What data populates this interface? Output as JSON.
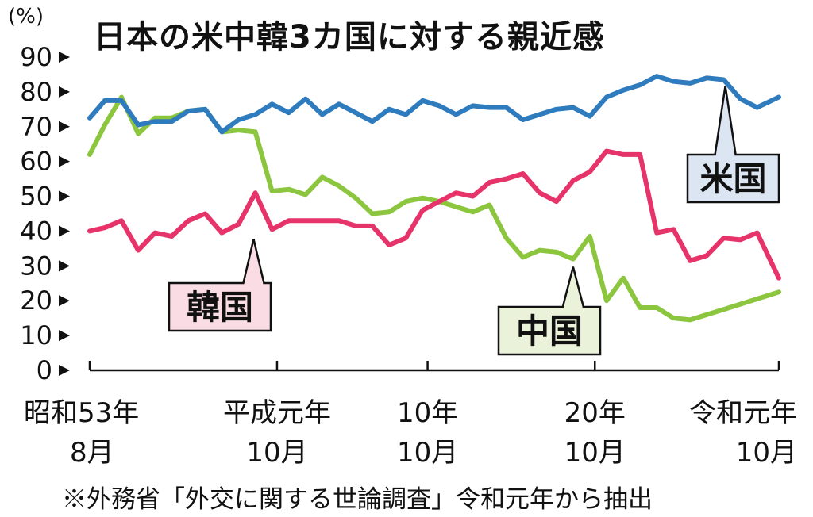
{
  "unit": "(%)",
  "title": "日本の米中韓3カ国に対する親近感",
  "source": "※外務省「外交に関する世論調査」令和元年から抽出",
  "chart_data": {
    "type": "line",
    "title": "日本の米中韓3カ国に対する親近感",
    "ylabel": "(%)",
    "xlabel": "",
    "ylim": [
      0,
      90
    ],
    "yticks": [
      "0",
      "10",
      "20",
      "30",
      "40",
      "50",
      "60",
      "70",
      "80",
      "90"
    ],
    "x_range": [
      1978.6,
      2019.8
    ],
    "x_ticks": [
      {
        "x": 1978.6,
        "label1": "昭和53年",
        "label2": "8月"
      },
      {
        "x": 1989.8,
        "label1": "平成元年",
        "label2": "10月"
      },
      {
        "x": 1998.8,
        "label1": "10年",
        "label2": "10月"
      },
      {
        "x": 2008.8,
        "label1": "20年",
        "label2": "10月"
      },
      {
        "x": 2019.8,
        "label1": "令和元年",
        "label2": "10月"
      }
    ],
    "grid": false,
    "series": [
      {
        "name": "米国",
        "color": "#2E7BBE",
        "x": [
          1978.6,
          1979.5,
          1980.5,
          1981.5,
          1982.5,
          1983.5,
          1984.5,
          1985.5,
          1986.5,
          1987.5,
          1988.5,
          1989.5,
          1990.5,
          1991.5,
          1992.5,
          1993.5,
          1994.5,
          1995.5,
          1996.5,
          1997.5,
          1998.5,
          1999.5,
          2000.5,
          2001.5,
          2002.5,
          2003.5,
          2004.5,
          2005.5,
          2006.5,
          2007.5,
          2008.5,
          2009.5,
          2010.5,
          2011.5,
          2012.5,
          2013.5,
          2014.5,
          2015.5,
          2016.5,
          2017.5,
          2018.5,
          2019.8
        ],
        "values": [
          72.5,
          77.5,
          77.5,
          70.5,
          71.5,
          71.5,
          74.5,
          75,
          68.5,
          72,
          73.5,
          76.5,
          74,
          78,
          73.5,
          76.5,
          74,
          71.5,
          75,
          73.5,
          77.5,
          76,
          73.5,
          76,
          75.5,
          75.5,
          72,
          73.5,
          75,
          75.5,
          73,
          78.5,
          80.5,
          82,
          84.5,
          83,
          82.5,
          84,
          83.5,
          78,
          75.5,
          78.5
        ],
        "label_box": {
          "text": "米国",
          "bg": "#DCE6F3",
          "tail_x": 2016.6,
          "tail_y": 83.5
        }
      },
      {
        "name": "中国",
        "color": "#8CC63F",
        "x": [
          1978.6,
          1979.5,
          1980.5,
          1981.5,
          1982.5,
          1983.5,
          1984.5,
          1985.5,
          1986.5,
          1987.5,
          1988.5,
          1989.5,
          1990.5,
          1991.5,
          1992.5,
          1993.5,
          1994.5,
          1995.5,
          1996.5,
          1997.5,
          1998.5,
          1999.5,
          2000.5,
          2001.5,
          2002.5,
          2003.5,
          2004.5,
          2005.5,
          2006.5,
          2007.5,
          2008.5,
          2009.5,
          2010.5,
          2011.5,
          2012.5,
          2013.5,
          2014.5,
          2015.5,
          2016.5,
          2019.8
        ],
        "values": [
          62,
          70.5,
          78.5,
          68,
          72.5,
          72.5,
          74.5,
          75,
          68.5,
          69,
          68.5,
          51.5,
          52,
          50.5,
          55.5,
          53,
          49.5,
          45,
          45.5,
          48.5,
          49.5,
          48.5,
          47,
          45.5,
          47.5,
          38,
          32.5,
          34.5,
          34,
          32,
          38.5,
          20,
          26.5,
          18,
          18,
          15,
          14.5,
          16,
          17.5,
          22.5
        ],
        "label_box": {
          "text": "中国",
          "bg": "#EAF2DA",
          "tail_x": 2007.5,
          "tail_y": 32
        }
      },
      {
        "name": "韓国",
        "color": "#E6336A",
        "x": [
          1978.6,
          1979.5,
          1980.5,
          1981.5,
          1982.5,
          1983.5,
          1984.5,
          1985.5,
          1986.5,
          1987.5,
          1988.5,
          1989.5,
          1990.5,
          1991.5,
          1992.5,
          1993.5,
          1994.5,
          1995.5,
          1996.5,
          1997.5,
          1998.5,
          1999.5,
          2000.5,
          2001.5,
          2002.5,
          2003.5,
          2004.5,
          2005.5,
          2006.5,
          2007.5,
          2008.5,
          2009.5,
          2010.5,
          2011.5,
          2012.5,
          2013.5,
          2014.5,
          2015.5,
          2016.5,
          2017.5,
          2018.5,
          2019.8
        ],
        "values": [
          40,
          41,
          43,
          34.5,
          39.5,
          38.5,
          43,
          45,
          39.5,
          42,
          51,
          40.5,
          43,
          43,
          43,
          43,
          41.5,
          41.5,
          36,
          38,
          46,
          48.5,
          51,
          50,
          54,
          55,
          56.5,
          51,
          48.5,
          54.5,
          57,
          63,
          62,
          62,
          39.5,
          40.5,
          31.5,
          33,
          38,
          37.5,
          39.5,
          26.5
        ],
        "label_box": {
          "text": "韓国",
          "bg": "#F9DCE4",
          "tail_x": 1988.4,
          "tail_y": 40
        }
      }
    ]
  }
}
